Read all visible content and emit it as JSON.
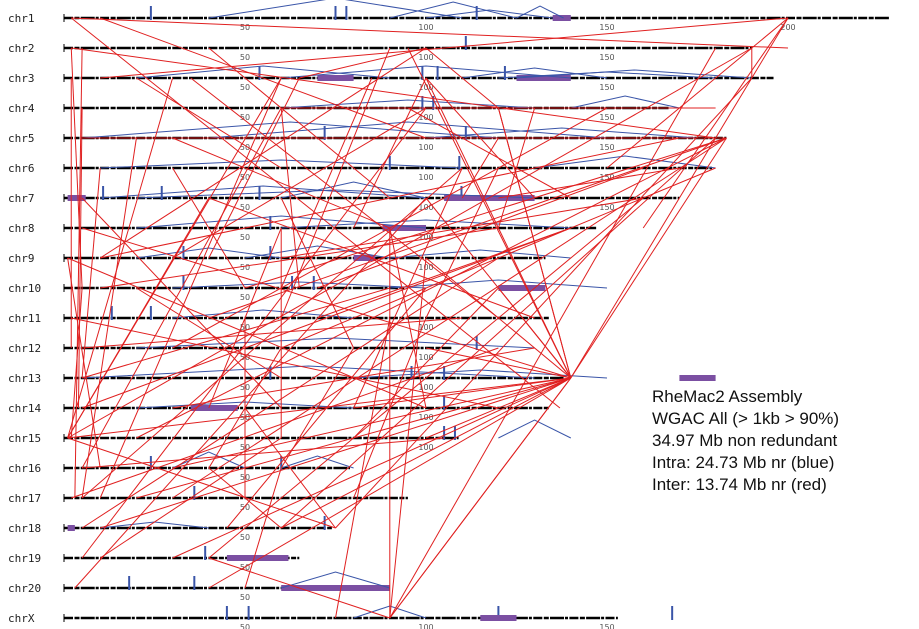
{
  "chromosomes": [
    {
      "name": "chr1",
      "length": 228,
      "ticks": [
        "50",
        "100",
        "150",
        "200"
      ]
    },
    {
      "name": "chr2",
      "length": 190,
      "ticks": [
        "50",
        "100",
        "150"
      ]
    },
    {
      "name": "chr3",
      "length": 196,
      "ticks": [
        "50",
        "100",
        "150"
      ]
    },
    {
      "name": "chr4",
      "length": 167,
      "ticks": [
        "50",
        "100",
        "150"
      ]
    },
    {
      "name": "chr5",
      "length": 183,
      "ticks": [
        "50",
        "100",
        "150"
      ]
    },
    {
      "name": "chr6",
      "length": 179,
      "ticks": [
        "50",
        "100",
        "150"
      ]
    },
    {
      "name": "chr7",
      "length": 170,
      "ticks": [
        "50",
        "100",
        "150"
      ]
    },
    {
      "name": "chr8",
      "length": 147,
      "ticks": [
        "50",
        "100"
      ]
    },
    {
      "name": "chr9",
      "length": 133,
      "ticks": [
        "50",
        "100"
      ]
    },
    {
      "name": "chr10",
      "length": 94,
      "ticks": [
        "50"
      ]
    },
    {
      "name": "chr11",
      "length": 134,
      "ticks": [
        "50",
        "100"
      ]
    },
    {
      "name": "chr12",
      "length": 107,
      "ticks": [
        "50",
        "100"
      ]
    },
    {
      "name": "chr13",
      "length": 138,
      "ticks": [
        "50",
        "100"
      ]
    },
    {
      "name": "chr14",
      "length": 134,
      "ticks": [
        "50",
        "100"
      ]
    },
    {
      "name": "chr15",
      "length": 109,
      "ticks": [
        "50",
        "100"
      ]
    },
    {
      "name": "chr16",
      "length": 79,
      "ticks": [
        "50"
      ]
    },
    {
      "name": "chr17",
      "length": 95,
      "ticks": [
        "50"
      ]
    },
    {
      "name": "chr18",
      "length": 74,
      "ticks": [
        "50"
      ]
    },
    {
      "name": "chr19",
      "length": 65,
      "ticks": [
        "50"
      ]
    },
    {
      "name": "chr20",
      "length": 88,
      "ticks": [
        "50"
      ]
    },
    {
      "name": "chrX",
      "length": 153,
      "ticks": [
        "50",
        "100",
        "150"
      ]
    }
  ],
  "intra_color": "#3a55a8",
  "inter_color": "#e02020",
  "block_color": "#7b4fa2",
  "legend": {
    "line1": "RheMac2 Assembly",
    "line2": "WGAC All (> 1kb > 90%)",
    "line3": "34.97 Mb non redundant",
    "line4": "Intra: 24.73 Mb nr (blue)",
    "line5": "Inter: 13.74 Mb nr (red)"
  },
  "inter_links": [
    [
      0,
      2,
      1,
      200
    ],
    [
      0,
      2,
      13,
      137
    ],
    [
      0,
      10,
      4,
      100
    ],
    [
      0,
      200,
      2,
      10
    ],
    [
      0,
      200,
      5,
      150
    ],
    [
      0,
      200,
      12,
      140
    ],
    [
      0,
      200,
      7,
      160
    ],
    [
      1,
      2,
      4,
      180
    ],
    [
      1,
      2,
      9,
      5
    ],
    [
      1,
      95,
      12,
      140
    ],
    [
      1,
      100,
      8,
      10
    ],
    [
      1,
      100,
      3,
      120
    ],
    [
      1,
      5,
      16,
      3
    ],
    [
      1,
      40,
      6,
      90
    ],
    [
      1,
      190,
      14,
      1
    ],
    [
      2,
      2,
      11,
      2
    ],
    [
      2,
      60,
      14,
      1
    ],
    [
      2,
      65,
      8,
      40
    ],
    [
      2,
      65,
      1,
      100
    ],
    [
      2,
      60,
      16,
      10
    ],
    [
      2,
      100,
      12,
      140
    ],
    [
      2,
      100,
      6,
      130
    ],
    [
      2,
      190,
      1,
      190
    ],
    [
      2,
      190,
      17,
      75
    ],
    [
      2,
      35,
      10,
      120
    ],
    [
      2,
      85,
      9,
      60
    ],
    [
      3,
      5,
      13,
      4
    ],
    [
      3,
      120,
      12,
      140
    ],
    [
      3,
      60,
      9,
      65
    ],
    [
      3,
      130,
      7,
      120
    ],
    [
      3,
      100,
      18,
      5
    ],
    [
      3,
      60,
      3,
      180
    ],
    [
      3,
      150,
      11,
      30
    ],
    [
      4,
      5,
      4,
      183
    ],
    [
      4,
      183,
      9,
      50
    ],
    [
      4,
      183,
      14,
      20
    ],
    [
      4,
      183,
      16,
      30
    ],
    [
      4,
      183,
      12,
      140
    ],
    [
      4,
      30,
      7,
      90
    ],
    [
      4,
      183,
      10,
      40
    ],
    [
      4,
      120,
      6,
      110
    ],
    [
      4,
      170,
      8,
      10
    ],
    [
      5,
      10,
      12,
      5
    ],
    [
      5,
      110,
      16,
      5
    ],
    [
      5,
      110,
      13,
      80
    ],
    [
      5,
      160,
      9,
      70
    ],
    [
      5,
      60,
      2,
      20
    ],
    [
      5,
      120,
      10,
      100
    ],
    [
      6,
      5,
      13,
      60
    ],
    [
      6,
      120,
      5,
      170
    ],
    [
      6,
      100,
      12,
      140
    ],
    [
      6,
      100,
      19,
      3
    ],
    [
      6,
      60,
      11,
      80
    ],
    [
      6,
      40,
      10,
      130
    ],
    [
      6,
      140,
      3,
      95
    ],
    [
      7,
      5,
      12,
      140
    ],
    [
      7,
      60,
      13,
      40
    ],
    [
      7,
      120,
      9,
      10
    ],
    [
      7,
      80,
      2,
      100
    ],
    [
      7,
      60,
      14,
      60
    ],
    [
      7,
      140,
      13,
      5
    ],
    [
      8,
      1,
      15,
      10
    ],
    [
      8,
      100,
      12,
      140
    ],
    [
      8,
      1,
      13,
      100
    ],
    [
      8,
      60,
      6,
      160
    ],
    [
      8,
      100,
      20,
      90
    ],
    [
      8,
      30,
      3,
      100
    ],
    [
      9,
      5,
      14,
      2
    ],
    [
      9,
      120,
      12,
      140
    ],
    [
      9,
      50,
      5,
      30
    ],
    [
      9,
      90,
      12,
      5
    ],
    [
      9,
      100,
      17,
      45
    ],
    [
      10,
      2,
      13,
      120
    ],
    [
      10,
      100,
      16,
      80
    ],
    [
      10,
      70,
      7,
      140
    ],
    [
      10,
      60,
      1,
      90
    ],
    [
      10,
      90,
      20,
      75
    ],
    [
      11,
      5,
      10,
      110
    ],
    [
      11,
      80,
      15,
      60
    ],
    [
      11,
      100,
      12,
      140
    ],
    [
      11,
      60,
      5,
      180
    ],
    [
      12,
      140,
      16,
      20
    ],
    [
      12,
      140,
      15,
      30
    ],
    [
      12,
      140,
      17,
      10
    ],
    [
      12,
      140,
      18,
      30
    ],
    [
      12,
      140,
      14,
      100
    ],
    [
      12,
      140,
      3,
      120
    ],
    [
      12,
      140,
      20,
      90
    ],
    [
      12,
      140,
      13,
      80
    ],
    [
      12,
      60,
      9,
      20
    ],
    [
      13,
      30,
      11,
      130
    ],
    [
      13,
      100,
      7,
      90
    ],
    [
      13,
      50,
      17,
      75
    ],
    [
      14,
      1,
      6,
      40
    ],
    [
      14,
      1,
      17,
      75
    ],
    [
      14,
      1,
      2,
      30
    ],
    [
      14,
      1,
      12,
      140
    ],
    [
      14,
      60,
      18,
      10
    ],
    [
      14,
      80,
      9,
      120
    ],
    [
      15,
      5,
      3,
      60
    ],
    [
      15,
      40,
      17,
      60
    ],
    [
      15,
      5,
      14,
      105
    ],
    [
      15,
      60,
      19,
      50
    ],
    [
      15,
      40,
      11,
      60
    ],
    [
      16,
      2,
      11,
      120
    ],
    [
      16,
      50,
      10,
      50
    ],
    [
      16,
      5,
      4,
      20
    ],
    [
      17,
      5,
      8,
      120
    ],
    [
      17,
      60,
      12,
      140
    ],
    [
      17,
      60,
      4,
      180
    ],
    [
      18,
      40,
      20,
      90
    ],
    [
      18,
      40,
      6,
      160
    ],
    [
      19,
      40,
      12,
      140
    ],
    [
      20,
      90,
      12,
      140
    ],
    [
      20,
      90,
      7,
      90
    ],
    [
      20,
      90,
      1,
      180
    ]
  ],
  "intra_arcs": [
    [
      0,
      40,
      110,
      10
    ],
    [
      0,
      90,
      125,
      8
    ],
    [
      0,
      125,
      138,
      6
    ],
    [
      0,
      100,
      135,
      4
    ],
    [
      2,
      20,
      90,
      6
    ],
    [
      2,
      110,
      150,
      5
    ],
    [
      2,
      125,
      190,
      4
    ],
    [
      2,
      60,
      140,
      6
    ],
    [
      2,
      120,
      180,
      3
    ],
    [
      3,
      140,
      170,
      6
    ],
    [
      3,
      60,
      130,
      4
    ],
    [
      4,
      5,
      120,
      8
    ],
    [
      4,
      40,
      150,
      8
    ],
    [
      4,
      100,
      175,
      5
    ],
    [
      5,
      10,
      110,
      4
    ],
    [
      5,
      130,
      180,
      6
    ],
    [
      6,
      10,
      100,
      6
    ],
    [
      6,
      60,
      100,
      8
    ],
    [
      6,
      20,
      130,
      4
    ],
    [
      7,
      60,
      140,
      4
    ],
    [
      7,
      20,
      100,
      6
    ],
    [
      8,
      50,
      90,
      6
    ],
    [
      8,
      90,
      140,
      4
    ],
    [
      8,
      20,
      60,
      5
    ],
    [
      9,
      90,
      150,
      4
    ],
    [
      9,
      30,
      100,
      3
    ],
    [
      10,
      30,
      80,
      4
    ],
    [
      11,
      20,
      130,
      5
    ],
    [
      12,
      5,
      130,
      6
    ],
    [
      12,
      80,
      150,
      4
    ],
    [
      13,
      20,
      80,
      3
    ],
    [
      14,
      120,
      140,
      9
    ],
    [
      15,
      30,
      50,
      8
    ],
    [
      15,
      60,
      80,
      6
    ],
    [
      17,
      10,
      40,
      3
    ],
    [
      19,
      60,
      90,
      8
    ],
    [
      20,
      80,
      100,
      6
    ]
  ],
  "dup_blocks": [
    [
      2,
      70,
      80
    ],
    [
      2,
      125,
      140
    ],
    [
      6,
      105,
      130
    ],
    [
      7,
      88,
      100
    ],
    [
      8,
      80,
      86
    ],
    [
      9,
      120,
      133
    ],
    [
      13,
      35,
      48
    ],
    [
      12,
      170,
      180
    ],
    [
      18,
      45,
      62
    ],
    [
      19,
      60,
      90
    ],
    [
      20,
      115,
      125
    ],
    [
      0,
      135,
      140
    ],
    [
      6,
      1,
      6
    ],
    [
      17,
      1,
      3
    ]
  ],
  "spikes": [
    [
      0,
      40
    ],
    [
      0,
      190
    ],
    [
      0,
      125
    ],
    [
      0,
      130
    ],
    [
      1,
      185
    ],
    [
      2,
      90
    ],
    [
      2,
      165
    ],
    [
      2,
      172
    ],
    [
      2,
      203
    ],
    [
      3,
      165
    ],
    [
      3,
      170
    ],
    [
      4,
      120
    ],
    [
      4,
      185
    ],
    [
      5,
      150
    ],
    [
      5,
      182
    ],
    [
      6,
      18
    ],
    [
      6,
      45
    ],
    [
      6,
      90
    ],
    [
      6,
      183
    ],
    [
      7,
      95
    ],
    [
      8,
      55
    ],
    [
      8,
      95
    ],
    [
      9,
      55
    ],
    [
      9,
      105
    ],
    [
      9,
      115
    ],
    [
      10,
      22
    ],
    [
      10,
      40
    ],
    [
      11,
      190
    ],
    [
      12,
      95
    ],
    [
      12,
      160
    ],
    [
      12,
      175
    ],
    [
      13,
      175
    ],
    [
      14,
      175
    ],
    [
      14,
      180
    ],
    [
      15,
      40
    ],
    [
      15,
      100
    ],
    [
      16,
      60
    ],
    [
      17,
      120
    ],
    [
      18,
      65
    ],
    [
      19,
      30
    ],
    [
      19,
      60
    ],
    [
      20,
      75
    ],
    [
      20,
      85
    ],
    [
      20,
      200
    ],
    [
      20,
      280
    ]
  ]
}
